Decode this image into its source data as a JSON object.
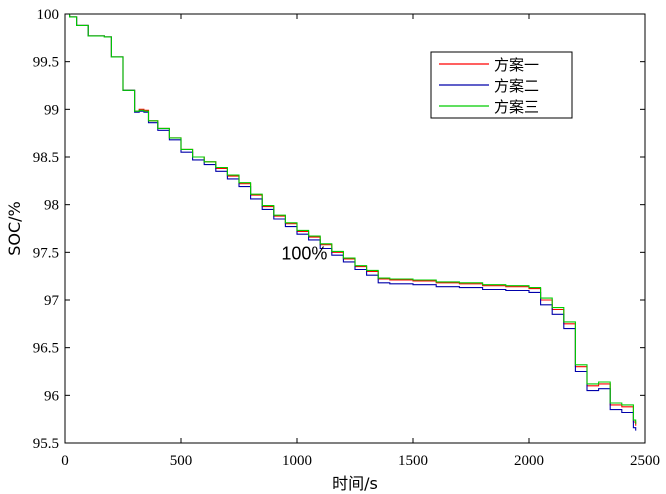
{
  "chart_data": {
    "type": "line",
    "xlabel": "时间/s",
    "ylabel": "SOC/%",
    "xlim": [
      0,
      2500
    ],
    "ylim": [
      95.5,
      100
    ],
    "x_ticks": [
      0,
      500,
      1000,
      1500,
      2000,
      2500
    ],
    "y_ticks": [
      95.5,
      96,
      96.5,
      97,
      97.5,
      98,
      98.5,
      99,
      99.5,
      100
    ],
    "x_tick_labels": [
      "0",
      "500",
      "1000",
      "1500",
      "2000",
      "2500"
    ],
    "y_tick_labels": [
      "95.5",
      "96",
      "96.5",
      "97",
      "97.5",
      "98",
      "98.5",
      "99",
      "99.5",
      "100"
    ],
    "grid": false,
    "legend_position": "top-right",
    "annotation": {
      "text": "100%",
      "x": 950,
      "y": 97.5
    },
    "series": [
      {
        "name": "方案一",
        "color": "#ff0000",
        "x": [
          0,
          20,
          50,
          100,
          170,
          200,
          250,
          300,
          320,
          340,
          360,
          400,
          450,
          500,
          550,
          600,
          650,
          700,
          750,
          800,
          850,
          900,
          950,
          1000,
          1050,
          1100,
          1150,
          1200,
          1250,
          1300,
          1350,
          1400,
          1500,
          1600,
          1700,
          1800,
          1900,
          2000,
          2050,
          2100,
          2150,
          2200,
          2250,
          2300,
          2350,
          2400,
          2450,
          2460
        ],
        "y": [
          100,
          99.97,
          99.88,
          99.77,
          99.76,
          99.55,
          99.2,
          98.98,
          99.0,
          98.99,
          98.88,
          98.8,
          98.7,
          98.58,
          98.5,
          98.45,
          98.38,
          98.3,
          98.22,
          98.1,
          97.98,
          97.88,
          97.8,
          97.72,
          97.66,
          97.58,
          97.5,
          97.43,
          97.35,
          97.3,
          97.22,
          97.21,
          97.2,
          97.18,
          97.17,
          97.15,
          97.14,
          97.12,
          97.0,
          96.9,
          96.75,
          96.3,
          96.1,
          96.12,
          95.9,
          95.88,
          95.72,
          95.68
        ]
      },
      {
        "name": "方案二",
        "color": "#0000aa",
        "x": [
          0,
          20,
          50,
          100,
          170,
          200,
          250,
          300,
          320,
          340,
          360,
          400,
          450,
          500,
          550,
          600,
          650,
          700,
          750,
          800,
          850,
          900,
          950,
          1000,
          1050,
          1100,
          1150,
          1200,
          1250,
          1300,
          1350,
          1400,
          1500,
          1600,
          1700,
          1800,
          1900,
          2000,
          2050,
          2100,
          2150,
          2200,
          2250,
          2300,
          2350,
          2400,
          2450,
          2460
        ],
        "y": [
          100,
          99.97,
          99.88,
          99.77,
          99.76,
          99.55,
          99.2,
          98.97,
          98.98,
          98.97,
          98.86,
          98.78,
          98.68,
          98.55,
          98.47,
          98.42,
          98.35,
          98.27,
          98.19,
          98.06,
          97.95,
          97.85,
          97.77,
          97.69,
          97.63,
          97.54,
          97.47,
          97.4,
          97.32,
          97.26,
          97.18,
          97.17,
          97.16,
          97.14,
          97.13,
          97.11,
          97.1,
          97.08,
          96.95,
          96.85,
          96.7,
          96.25,
          96.05,
          96.07,
          95.85,
          95.82,
          95.66,
          95.63
        ]
      },
      {
        "name": "方案三",
        "color": "#00cc00",
        "x": [
          0,
          20,
          50,
          100,
          170,
          200,
          250,
          300,
          320,
          340,
          360,
          400,
          450,
          500,
          550,
          600,
          650,
          700,
          750,
          800,
          850,
          900,
          950,
          1000,
          1050,
          1100,
          1150,
          1200,
          1250,
          1300,
          1350,
          1400,
          1500,
          1600,
          1700,
          1800,
          1900,
          2000,
          2050,
          2100,
          2150,
          2200,
          2250,
          2300,
          2350,
          2400,
          2450,
          2460
        ],
        "y": [
          100,
          99.97,
          99.88,
          99.77,
          99.76,
          99.55,
          99.2,
          98.98,
          98.99,
          98.98,
          98.88,
          98.8,
          98.7,
          98.58,
          98.5,
          98.45,
          98.39,
          98.31,
          98.23,
          98.11,
          97.99,
          97.89,
          97.81,
          97.73,
          97.67,
          97.59,
          97.51,
          97.44,
          97.36,
          97.31,
          97.23,
          97.22,
          97.21,
          97.19,
          97.18,
          97.16,
          97.15,
          97.13,
          97.02,
          96.92,
          96.77,
          96.32,
          96.12,
          96.14,
          95.92,
          95.9,
          95.74,
          95.7
        ]
      }
    ]
  }
}
